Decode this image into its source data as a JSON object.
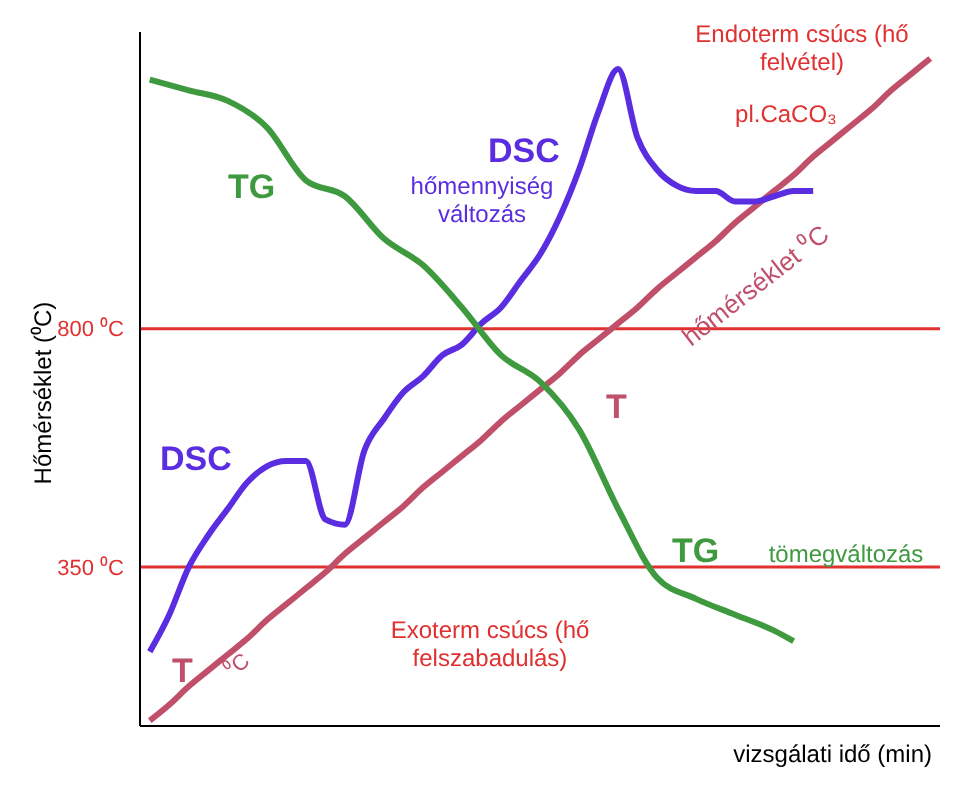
{
  "chart_data": {
    "type": "line",
    "xlabel": "vizsgálati idő (min)",
    "ylabel": "Hőmérséklet (⁰C)",
    "categories": [
      null,
      null,
      null,
      null,
      null,
      null,
      null,
      null,
      null,
      null,
      null,
      null,
      null,
      null,
      null,
      null,
      null,
      null,
      null,
      null,
      null,
      null,
      null,
      null,
      null,
      null,
      null,
      null,
      null,
      null,
      null,
      null,
      null,
      null,
      null,
      null,
      null,
      null,
      null,
      null,
      null
    ],
    "ylim": [
      50,
      1360
    ],
    "yticks": [
      {
        "value": 350,
        "label": "350 ⁰C"
      },
      {
        "value": 800,
        "label": "800 ⁰C"
      }
    ],
    "tick_labels": "y",
    "marker": "none",
    "line_style": "solid",
    "series": [
      {
        "name": "T",
        "color": "#c0506a",
        "values": [
          60,
          90,
          125,
          155,
          185,
          215,
          250,
          280,
          310,
          340,
          375,
          405,
          435,
          465,
          500,
          530,
          560,
          590,
          625,
          655,
          685,
          715,
          750,
          780,
          810,
          840,
          875,
          905,
          935,
          965,
          1000,
          1030,
          1060,
          1090,
          1125,
          1155,
          1185,
          1215,
          1250,
          1280,
          1310
        ]
      },
      {
        "name": "DSC",
        "color": "#5a2ee0",
        "values": [
          190,
          260,
          350,
          410,
          460,
          510,
          540,
          550,
          550,
          440,
          430,
          570,
          630,
          680,
          710,
          750,
          770,
          810,
          840,
          890,
          940,
          1010,
          1100,
          1210,
          1290,
          1160,
          1100,
          1070,
          1060,
          1060,
          1040,
          1040,
          1050,
          1060,
          1060,
          null,
          null,
          null,
          null,
          null,
          null
        ]
      },
      {
        "name": "TG",
        "color": "#3f9a3f",
        "values": [
          1270,
          null,
          1250,
          null,
          1230,
          null,
          1180,
          null,
          1080,
          null,
          1050,
          null,
          970,
          null,
          920,
          null,
          840,
          null,
          750,
          null,
          700,
          null,
          610,
          null,
          460,
          null,
          330,
          null,
          290,
          null,
          260,
          null,
          230,
          210,
          null,
          null,
          null,
          null,
          null,
          null,
          null
        ]
      }
    ],
    "ref_lines": [
      {
        "axis": "y",
        "value": 800,
        "color": "#e03030"
      },
      {
        "axis": "y",
        "value": 350,
        "color": "#e03030"
      }
    ],
    "annotations": [
      "hőmennyiség változás",
      "Endoterm csúcs (hő felvétel)",
      "pl.CaCO₃",
      "hőmérséklet ⁰C",
      "tömegváltozás",
      "Exoterm csúcs (hő felszabadulás)",
      "⁰C"
    ]
  }
}
